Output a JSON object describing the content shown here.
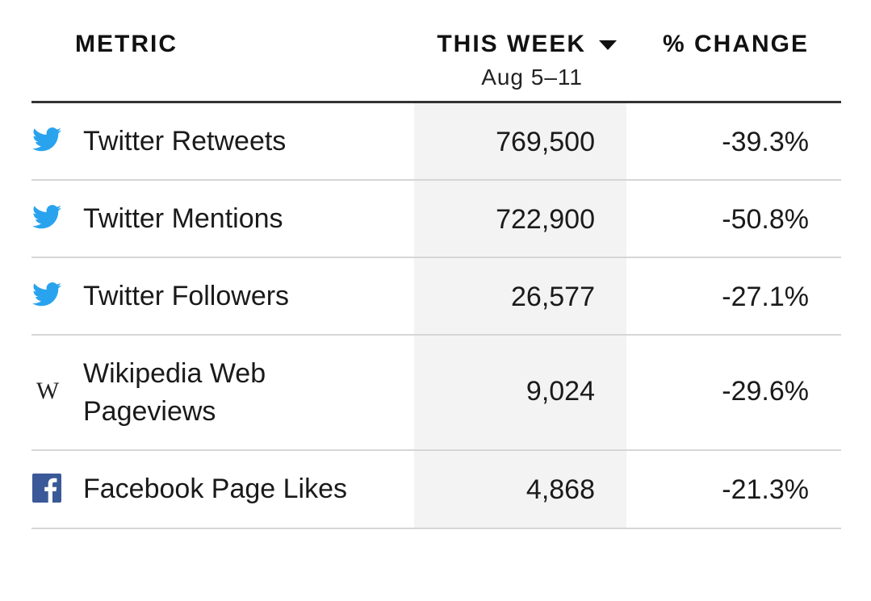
{
  "header": {
    "metric_label": "METRIC",
    "week_label": "THIS WEEK",
    "week_range": "Aug 5–11",
    "change_label": "% CHANGE"
  },
  "rows": [
    {
      "icon": "twitter-bird-icon",
      "label": "Twitter Retweets",
      "value": "769,500",
      "change": "-39.3%"
    },
    {
      "icon": "twitter-bird-icon",
      "label": "Twitter Mentions",
      "value": "722,900",
      "change": "-50.8%"
    },
    {
      "icon": "twitter-bird-icon",
      "label": "Twitter Followers",
      "value": "26,577",
      "change": "-27.1%"
    },
    {
      "icon": "wikipedia-w-icon",
      "label": "Wikipedia Web Pageviews",
      "value": "9,024",
      "change": "-29.6%",
      "icon_glyph": "W"
    },
    {
      "icon": "facebook-f-icon",
      "label": "Facebook Page Likes",
      "value": "4,868",
      "change": "-21.3%"
    }
  ],
  "colors": {
    "twitter": "#2aa3ef",
    "facebook": "#3b5998",
    "column_shade": "#f3f3f3",
    "divider": "#d6d6d6",
    "header_rule": "#333333"
  }
}
